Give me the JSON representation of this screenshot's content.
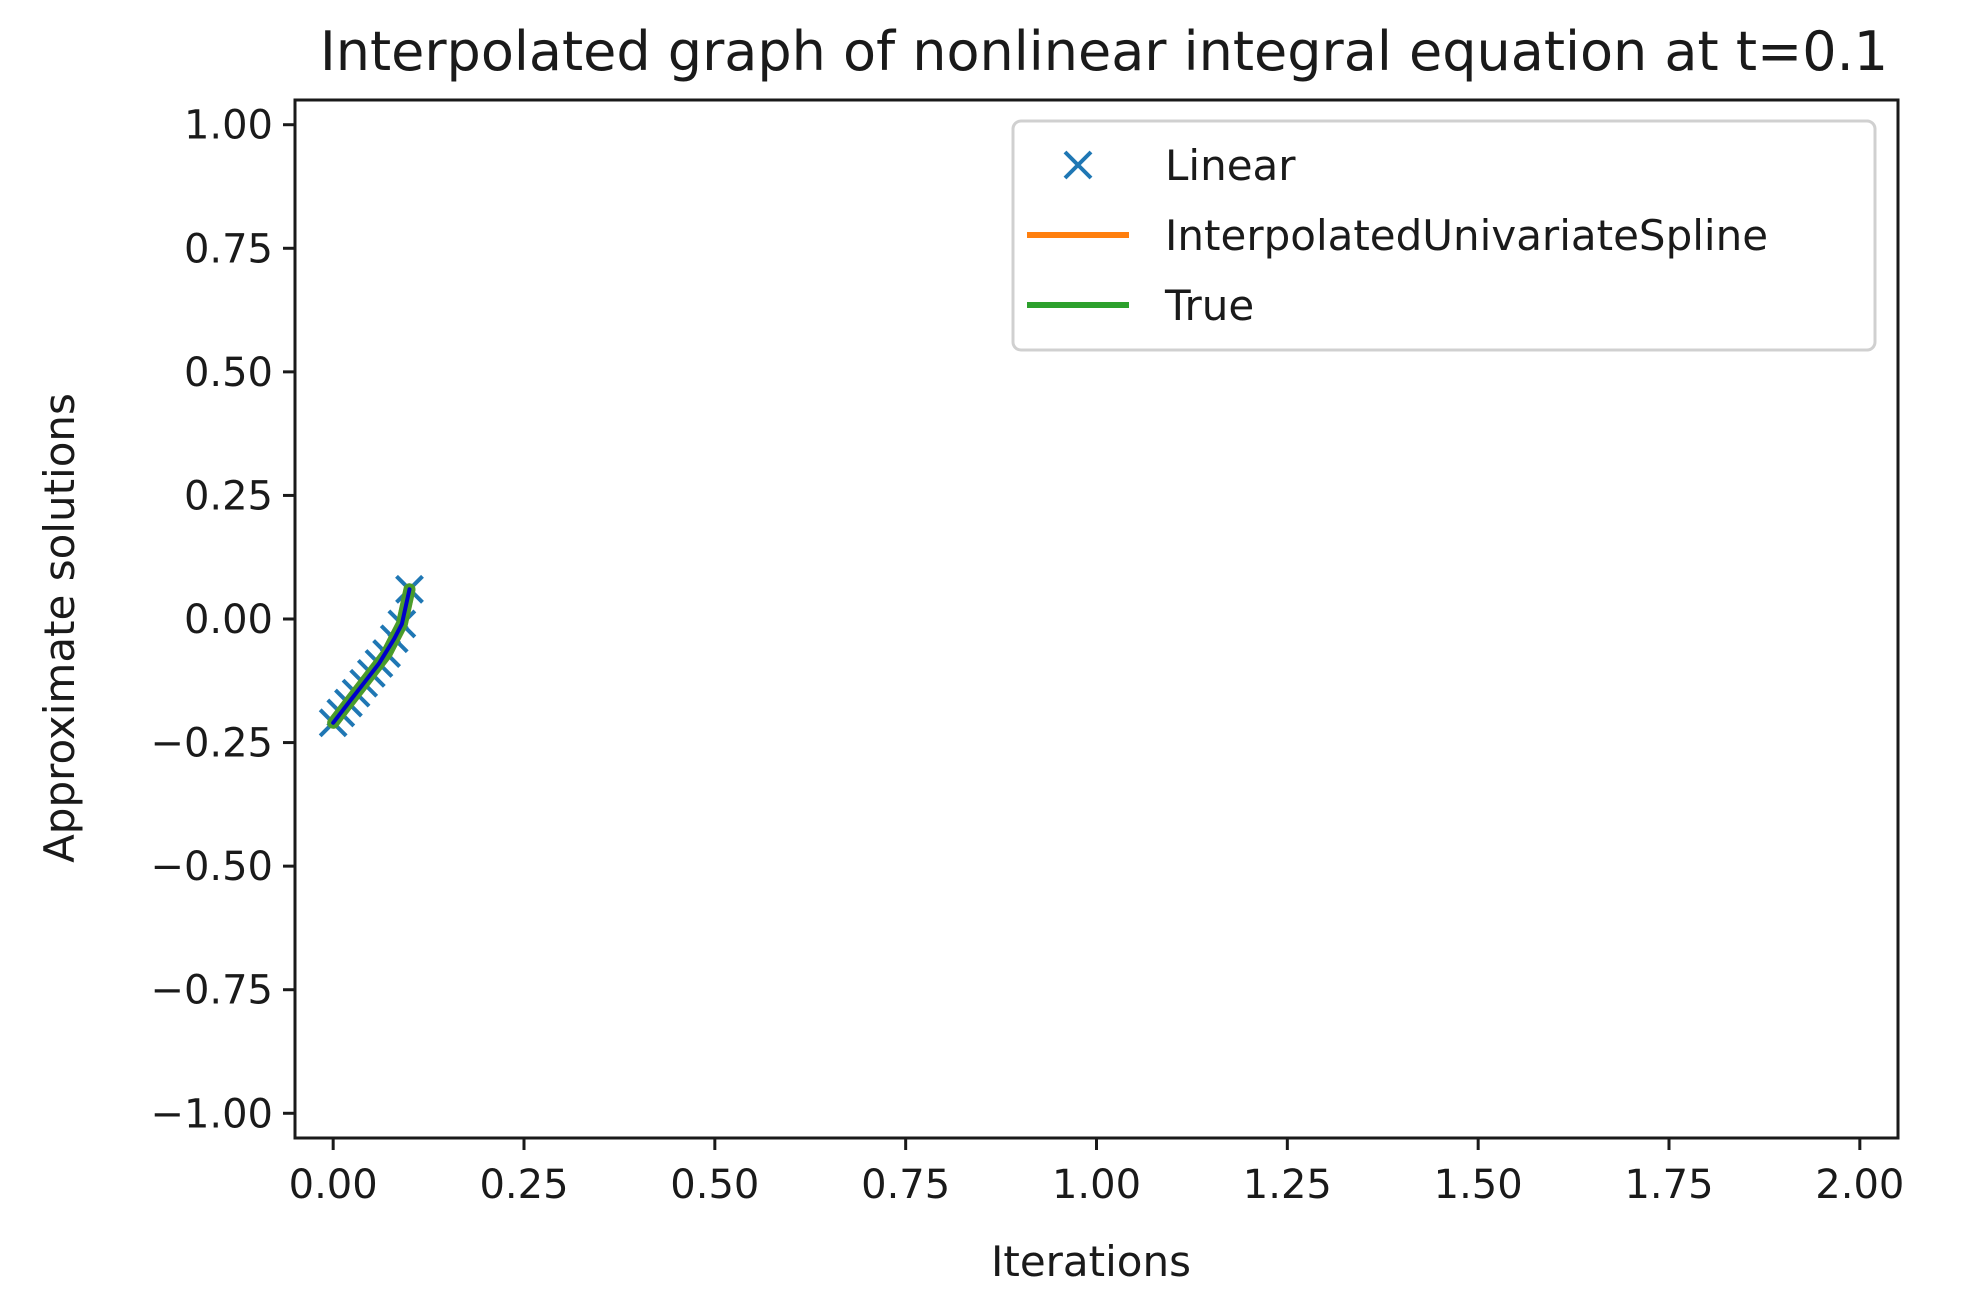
{
  "chart_data": {
    "type": "line",
    "title": "Interpolated graph of nonlinear integral equation at t=0.1",
    "xlabel": "Iterations",
    "ylabel": "Approximate solutions",
    "xlim": [
      -0.05,
      2.05
    ],
    "ylim": [
      -1.05,
      1.05
    ],
    "x_ticks": [
      0.0,
      0.25,
      0.5,
      0.75,
      1.0,
      1.25,
      1.5,
      1.75,
      2.0
    ],
    "x_tick_labels": [
      "0.00",
      "0.25",
      "0.50",
      "0.75",
      "1.00",
      "1.25",
      "1.50",
      "1.75",
      "2.00"
    ],
    "y_ticks": [
      1.0,
      0.75,
      0.5,
      0.25,
      0.0,
      -0.25,
      -0.5,
      -0.75,
      -1.0
    ],
    "y_tick_labels": [
      "1.00",
      "0.75",
      "0.50",
      "0.25",
      "0.00",
      "−0.25",
      "−0.50",
      "−0.75",
      "−1.00"
    ],
    "grid": false,
    "legend_position": "top-right",
    "series": [
      {
        "name": "Linear",
        "style": "marker-x",
        "color": "#1f77b4",
        "x": [
          0.0,
          0.01,
          0.02,
          0.03,
          0.04,
          0.05,
          0.06,
          0.07,
          0.08,
          0.09,
          0.1
        ],
        "y": [
          -0.21,
          -0.19,
          -0.17,
          -0.15,
          -0.13,
          -0.11,
          -0.09,
          -0.07,
          -0.04,
          -0.01,
          0.06
        ]
      },
      {
        "name": "InterpolatedUnivariateSpline",
        "style": "line",
        "color": "#ff7f0e",
        "x": [
          0.0,
          0.01,
          0.02,
          0.03,
          0.04,
          0.05,
          0.06,
          0.07,
          0.08,
          0.09,
          0.1
        ],
        "y": [
          -0.21,
          -0.19,
          -0.17,
          -0.15,
          -0.13,
          -0.11,
          -0.09,
          -0.07,
          -0.04,
          -0.01,
          0.06
        ]
      },
      {
        "name": "True",
        "style": "line",
        "color": "#2ca02c",
        "x": [
          0.0,
          0.01,
          0.02,
          0.03,
          0.04,
          0.05,
          0.06,
          0.07,
          0.08,
          0.09,
          0.1
        ],
        "y": [
          -0.21,
          -0.19,
          -0.17,
          -0.15,
          -0.13,
          -0.11,
          -0.09,
          -0.07,
          -0.04,
          -0.01,
          0.06
        ]
      },
      {
        "name": "",
        "style": "line",
        "color": "#0000cc",
        "x": [
          0.0,
          0.02,
          0.04,
          0.06,
          0.08,
          0.09,
          0.1
        ],
        "y": [
          -0.21,
          -0.17,
          -0.13,
          -0.09,
          -0.04,
          -0.01,
          0.06
        ]
      }
    ]
  }
}
